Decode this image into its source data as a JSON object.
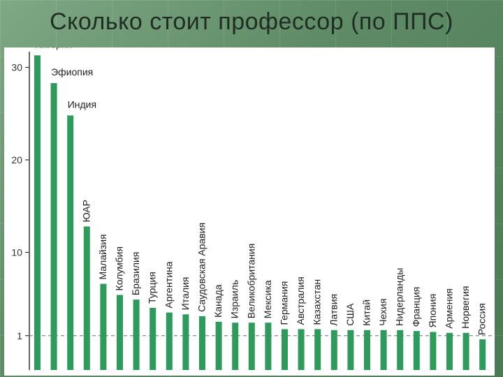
{
  "slide": {
    "title": "Сколько стоит профессор (по ППС)"
  },
  "colors": {
    "bar": "#2e9a5c",
    "axis": "#333333",
    "reference_line": "#888888"
  },
  "chart_data": {
    "type": "bar",
    "title": "",
    "xlabel": "",
    "ylabel": "",
    "ylim": [
      0,
      32
    ],
    "yticks": [
      1,
      10,
      20,
      30
    ],
    "reference_line": 1,
    "grid": false,
    "categories": [
      "Нигерия",
      "Эфиопия",
      "Индия",
      "ЮАР",
      "Малайзия",
      "Колумбия",
      "Бразилия",
      "Турция",
      "Аргентина",
      "Италия",
      "Саудовская Аравия",
      "Канада",
      "Израиль",
      "Великобритания",
      "Мексика",
      "Германия",
      "Австралия",
      "Казахстан",
      "Латвия",
      "США",
      "Китай",
      "Чехия",
      "Нидерланды",
      "Франция",
      "Япония",
      "Армения",
      "Норвегия",
      "Россия"
    ],
    "values": [
      31.3,
      28.3,
      24.8,
      12.8,
      6.6,
      5.4,
      4.9,
      4.0,
      3.5,
      3.3,
      3.1,
      2.5,
      2.4,
      2.4,
      2.4,
      1.7,
      1.7,
      1.7,
      1.6,
      1.6,
      1.6,
      1.6,
      1.6,
      1.5,
      1.4,
      1.3,
      1.3,
      0.6
    ]
  }
}
